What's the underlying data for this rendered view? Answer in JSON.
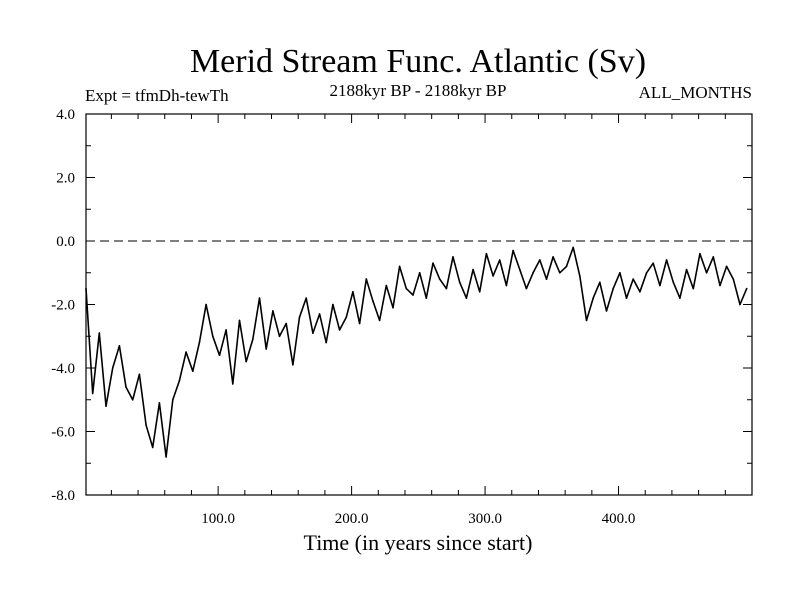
{
  "chart_data": {
    "type": "line",
    "title": "Merid Stream Func. Atlantic (Sv)",
    "subtitle_left": "Expt = tfmDh-tewTh",
    "subtitle_center": "2188kyr BP - 2188kyr BP",
    "subtitle_right": "ALL_MONTHS",
    "xlabel": "Time (in years since start)",
    "ylabel": "",
    "xlim": [
      1,
      500
    ],
    "ylim": [
      -8.0,
      4.0
    ],
    "xticks": [
      100,
      200,
      300,
      400
    ],
    "xtick_labels": [
      "100.0",
      "200.0",
      "300.0",
      "400.0"
    ],
    "yticks": [
      4.0,
      2.0,
      0.0,
      -2.0,
      -4.0,
      -6.0,
      -8.0
    ],
    "ytick_labels": [
      "4.0",
      "2.0",
      "0.0",
      "-2.0",
      "-4.0",
      "-6.0",
      "-8.0"
    ],
    "reference_line": {
      "y": 0.0,
      "style": "dashed"
    },
    "series": [
      {
        "name": "Merid Stream Func. Atlantic",
        "x_start": 1,
        "x_step": 5,
        "values": [
          -1.5,
          -4.8,
          -2.9,
          -5.2,
          -4.0,
          -3.3,
          -4.6,
          -5.0,
          -4.2,
          -5.8,
          -6.5,
          -5.1,
          -6.8,
          -5.0,
          -4.4,
          -3.5,
          -4.1,
          -3.2,
          -2.0,
          -3.0,
          -3.6,
          -2.8,
          -4.5,
          -2.5,
          -3.8,
          -3.1,
          -1.8,
          -3.4,
          -2.2,
          -3.0,
          -2.6,
          -3.9,
          -2.4,
          -1.8,
          -2.9,
          -2.3,
          -3.2,
          -2.0,
          -2.8,
          -2.4,
          -1.6,
          -2.6,
          -1.2,
          -1.9,
          -2.5,
          -1.4,
          -2.1,
          -0.8,
          -1.5,
          -1.7,
          -1.0,
          -1.8,
          -0.7,
          -1.2,
          -1.5,
          -0.5,
          -1.3,
          -1.8,
          -0.9,
          -1.6,
          -0.4,
          -1.1,
          -0.6,
          -1.4,
          -0.3,
          -0.9,
          -1.5,
          -1.0,
          -0.6,
          -1.2,
          -0.5,
          -1.0,
          -0.8,
          -0.2,
          -1.1,
          -2.5,
          -1.8,
          -1.3,
          -2.2,
          -1.5,
          -1.0,
          -1.8,
          -1.2,
          -1.6,
          -1.0,
          -0.7,
          -1.4,
          -0.6,
          -1.3,
          -1.8,
          -0.9,
          -1.5,
          -0.4,
          -1.0,
          -0.5,
          -1.4,
          -0.8,
          -1.2,
          -2.0,
          -1.5
        ],
        "color": "#000000"
      }
    ]
  }
}
